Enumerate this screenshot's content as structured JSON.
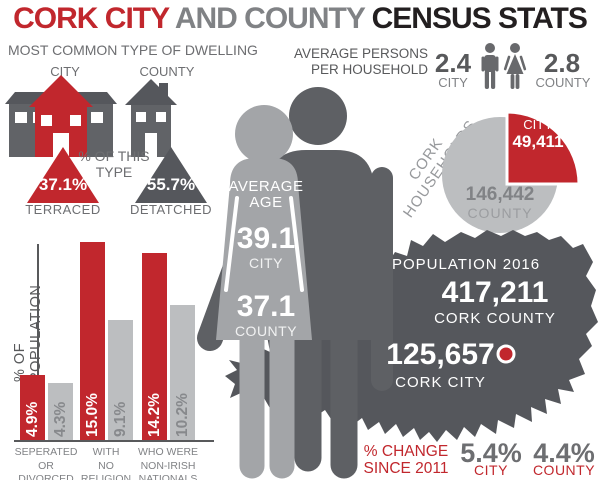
{
  "title": {
    "part1": "CORK CITY",
    "part2": "AND COUNTY",
    "part3": "CENSUS STATS"
  },
  "dwelling": {
    "heading": "MOST COMMON TYPE OF DWELLING",
    "city_label": "CITY",
    "county_label": "COUNTY",
    "note_line1": "% OF THIS",
    "note_line2": "TYPE",
    "city_pct": "37.1%",
    "city_type": "TERRACED",
    "county_pct": "55.7%",
    "county_type": "DETATCHED"
  },
  "household_size": {
    "heading_line1": "AVERAGE PERSONS",
    "heading_line2": "PER HOUSEHOLD",
    "city_value": "2.4",
    "city_label": "CITY",
    "county_value": "2.8",
    "county_label": "COUNTY"
  },
  "households": {
    "heading": "CORK HOUSEHOLDS",
    "city_label": "CITY",
    "city_value": "49,411",
    "county_value": "146,442",
    "county_label": "COUNTY"
  },
  "average_age": {
    "heading_line1": "AVERAGE",
    "heading_line2": "AGE",
    "city_value": "39.1",
    "city_label": "CITY",
    "county_value": "37.1",
    "county_label": "COUNTY"
  },
  "population": {
    "heading": "POPULATION 2016",
    "county_value": "417,211",
    "county_label": "CORK COUNTY",
    "city_value": "125,657",
    "city_label": "CORK CITY"
  },
  "change": {
    "line1": "% CHANGE",
    "line2": "SINCE 2011",
    "city_value": "5.4%",
    "city_label": "CITY",
    "county_value": "4.4%",
    "county_label": "COUNTY"
  },
  "colors": {
    "red": "#c1272d",
    "dark": "#231f20",
    "mid_gray": "#808285",
    "dark_gray": "#55575c",
    "light_gray": "#bcbec0"
  },
  "chart_data": [
    {
      "type": "bar",
      "title": "% OF POPULATION",
      "ylabel": "% OF POPULATION",
      "categories": [
        "SEPERATED OR DIVORCED",
        "WITH NO RELIGION",
        "WHO WERE NON-IRISH NATIONALS"
      ],
      "categories_lines": [
        [
          "SEPERATED",
          "OR",
          "DIVORCED"
        ],
        [
          "WITH",
          "NO",
          "RELIGION"
        ],
        [
          "WHO WERE",
          "NON-IRISH",
          "NATIONALS"
        ]
      ],
      "series": [
        {
          "name": "CITY",
          "color": "#c1272d",
          "values": [
            4.9,
            15.0,
            14.2
          ],
          "labels": [
            "4.9%",
            "15.0%",
            "14.2%"
          ]
        },
        {
          "name": "COUNTY",
          "color": "#bcbec0",
          "values": [
            4.3,
            9.1,
            10.2
          ],
          "labels": [
            "4.3%",
            "9.1%",
            "10.2%"
          ]
        }
      ],
      "ylim": [
        0,
        15.5
      ],
      "grid": false,
      "legend": "none",
      "unit": "% of population"
    },
    {
      "type": "pie",
      "title": "CORK HOUSEHOLDS",
      "categories": [
        "CITY",
        "COUNTY"
      ],
      "values": [
        49411,
        146442
      ],
      "labels": [
        "49,411",
        "146,442"
      ],
      "colors": [
        "#c1272d",
        "#bcbec0"
      ],
      "legend": "labels-inside"
    }
  ]
}
